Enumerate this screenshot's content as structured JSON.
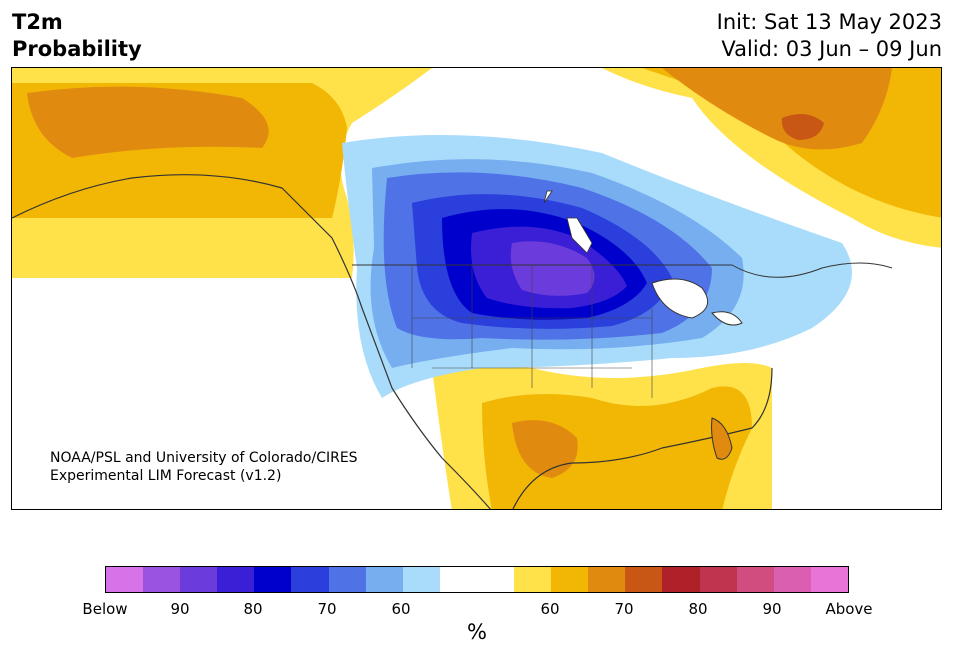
{
  "header": {
    "title_line1": "T2m",
    "title_line2": "Probability",
    "init": "Init: Sat 13 May 2023",
    "valid": "Valid: 03 Jun – 09 Jun"
  },
  "map": {
    "credit_line1": "NOAA/PSL and University of Colorado/CIRES",
    "credit_line2": "Experimental LIM Forecast (v1.2)"
  },
  "legend": {
    "unit": "%",
    "colors": [
      "#d773e8",
      "#9a52e0",
      "#6b3bdb",
      "#3a1fd6",
      "#0000cc",
      "#2a3fdc",
      "#4f72e6",
      "#76aef0",
      "#a9dcfb",
      "#ffffff",
      "#ffffff",
      "#ffe14a",
      "#f2b705",
      "#e08b10",
      "#c85614",
      "#b02028",
      "#c0344f",
      "#d14d80",
      "#da5fb0",
      "#e874d8"
    ],
    "labels": [
      "Below",
      "90",
      "80",
      "70",
      "60",
      "60",
      "70",
      "80",
      "90",
      "Above"
    ]
  }
}
